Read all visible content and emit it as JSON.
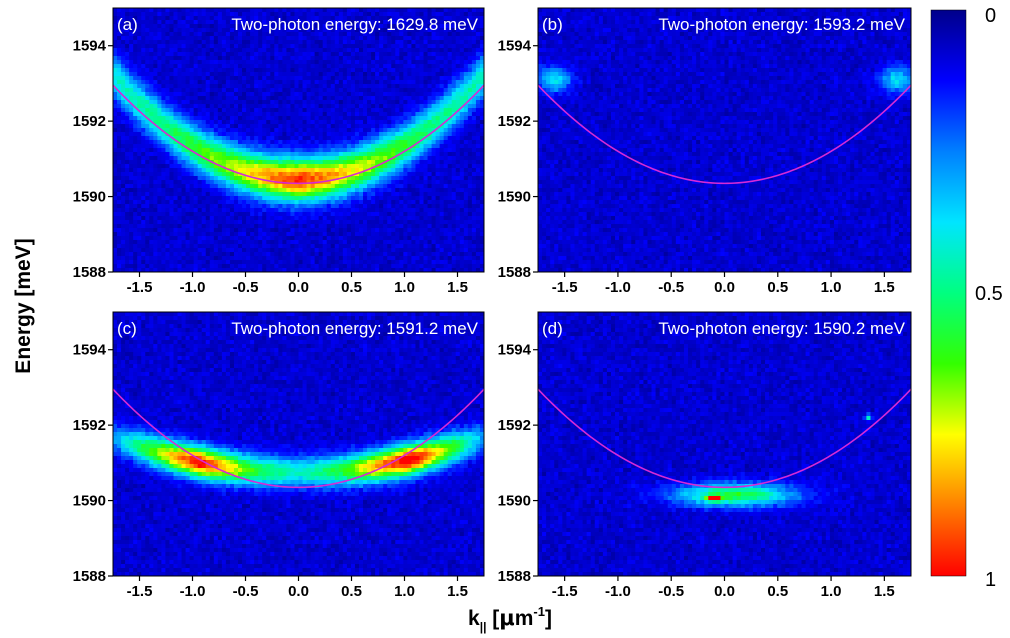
{
  "figure": {
    "ylabel": "Energy [meV]",
    "xlabel_main": "k",
    "xlabel_sub": "||",
    "xlabel_unit_open": " [",
    "xlabel_mu": "μ",
    "xlabel_m": "m",
    "xlabel_exp": "-1",
    "xlabel_close": "]"
  },
  "colorbar": {
    "min_label": "0",
    "mid_label": "0.5",
    "max_label": "1",
    "ticks": [
      0,
      0.5,
      1
    ],
    "colormap": [
      "#00008b",
      "#0000ff",
      "#0080ff",
      "#00e5ff",
      "#00ff80",
      "#33ff00",
      "#ffff00",
      "#ff8000",
      "#ff0000"
    ]
  },
  "curve_color": "#d62ad6",
  "chart_data": [
    {
      "type": "heatmap",
      "panel_label": "(a)",
      "title": "Two-photon energy: 1629.8 meV",
      "xlim": [
        -1.75,
        1.75
      ],
      "ylim": [
        1588,
        1595
      ],
      "xticks": [
        -1.5,
        -1.0,
        -0.5,
        0.0,
        0.5,
        1.0,
        1.5
      ],
      "xtick_labels": [
        "-1.5",
        "-1.0",
        "-0.5",
        "0.0",
        "0.5",
        "1.0",
        "1.5"
      ],
      "yticks": [
        1588,
        1590,
        1592,
        1594
      ],
      "ytick_labels": [
        "1588",
        "1590",
        "1592",
        "1594"
      ],
      "reference_curve": {
        "e0": 1590.35,
        "curvature": 0.85
      },
      "emission": [
        {
          "kind": "band",
          "e0": 1590.45,
          "curvature": 0.9,
          "k_range": [
            -1.75,
            1.75
          ],
          "sigma_e": 0.55,
          "intensity": [
            [
              -1.75,
              0.35
            ],
            [
              -1.2,
              0.45
            ],
            [
              -0.6,
              0.65
            ],
            [
              0.0,
              0.9
            ],
            [
              0.6,
              0.65
            ],
            [
              1.2,
              0.45
            ],
            [
              1.75,
              0.35
            ]
          ]
        }
      ]
    },
    {
      "type": "heatmap",
      "panel_label": "(b)",
      "title": "Two-photon energy: 1593.2 meV",
      "xlim": [
        -1.75,
        1.75
      ],
      "ylim": [
        1588,
        1595
      ],
      "xticks": [
        -1.5,
        -1.0,
        -0.5,
        0.0,
        0.5,
        1.0,
        1.5
      ],
      "xtick_labels": [
        "-1.5",
        "-1.0",
        "-0.5",
        "0.0",
        "0.5",
        "1.0",
        "1.5"
      ],
      "yticks": [
        1588,
        1590,
        1592,
        1594
      ],
      "ytick_labels": [
        "1588",
        "1590",
        "1592",
        "1594"
      ],
      "reference_curve": {
        "e0": 1590.35,
        "curvature": 0.85
      },
      "emission": [
        {
          "kind": "spot",
          "k": -1.6,
          "e": 1593.1,
          "sigma_k": 0.16,
          "sigma_e": 0.35,
          "peak": 0.3
        },
        {
          "kind": "spot",
          "k": 1.62,
          "e": 1593.1,
          "sigma_k": 0.16,
          "sigma_e": 0.35,
          "peak": 0.3
        }
      ]
    },
    {
      "type": "heatmap",
      "panel_label": "(c)",
      "title": "Two-photon energy: 1591.2 meV",
      "xlim": [
        -1.75,
        1.75
      ],
      "ylim": [
        1588,
        1595
      ],
      "xticks": [
        -1.5,
        -1.0,
        -0.5,
        0.0,
        0.5,
        1.0,
        1.5
      ],
      "xtick_labels": [
        "-1.5",
        "-1.0",
        "-0.5",
        "0.0",
        "0.5",
        "1.0",
        "1.5"
      ],
      "yticks": [
        1588,
        1590,
        1592,
        1594
      ],
      "ytick_labels": [
        "1588",
        "1590",
        "1592",
        "1594"
      ],
      "reference_curve": {
        "e0": 1590.35,
        "curvature": 0.85
      },
      "emission": [
        {
          "kind": "band",
          "e0": 1590.75,
          "curvature": 0.3,
          "k_range": [
            -1.75,
            1.75
          ],
          "sigma_e": 0.4,
          "intensity": [
            [
              -1.75,
              0.2
            ],
            [
              -1.45,
              0.5
            ],
            [
              -0.95,
              0.95
            ],
            [
              -0.4,
              0.5
            ],
            [
              0.0,
              0.35
            ],
            [
              0.4,
              0.5
            ],
            [
              1.05,
              1.0
            ],
            [
              1.45,
              0.55
            ],
            [
              1.75,
              0.2
            ]
          ]
        }
      ]
    },
    {
      "type": "heatmap",
      "panel_label": "(d)",
      "title": "Two-photon energy: 1590.2 meV",
      "xlim": [
        -1.75,
        1.75
      ],
      "ylim": [
        1588,
        1595
      ],
      "xticks": [
        -1.5,
        -1.0,
        -0.5,
        0.0,
        0.5,
        1.0,
        1.5
      ],
      "xtick_labels": [
        "-1.5",
        "-1.0",
        "-0.5",
        "0.0",
        "0.5",
        "1.0",
        "1.5"
      ],
      "yticks": [
        1588,
        1590,
        1592,
        1594
      ],
      "ytick_labels": [
        "1588",
        "1590",
        "1592",
        "1594"
      ],
      "reference_curve": {
        "e0": 1590.35,
        "curvature": 0.85
      },
      "emission": [
        {
          "kind": "spot",
          "k": 0.1,
          "e": 1590.15,
          "sigma_k": 0.55,
          "sigma_e": 0.3,
          "peak": 0.5
        },
        {
          "kind": "spot",
          "k": -0.1,
          "e": 1590.05,
          "sigma_k": 0.06,
          "sigma_e": 0.06,
          "peak": 1.0
        },
        {
          "kind": "spot",
          "k": 1.35,
          "e": 1592.2,
          "sigma_k": 0.03,
          "sigma_e": 0.08,
          "peak": 0.4
        }
      ]
    }
  ]
}
